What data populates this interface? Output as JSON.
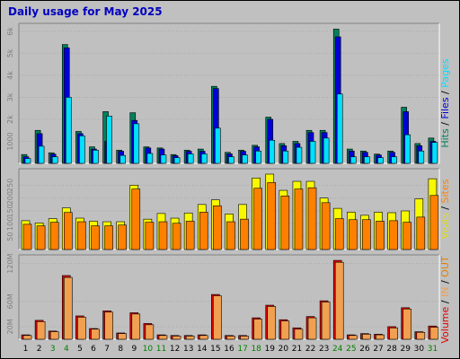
{
  "title": "Daily usage for May 2025",
  "colors": {
    "hits": "#00805c",
    "files": "#0000d8",
    "pages": "#00e0ff",
    "visits": "#f8f800",
    "sites": "#ff8000",
    "kbytes": "#e00000",
    "kbin": "#f0a050",
    "kbout": "#e08000",
    "weekday_label": "#000000",
    "weekend_label": "#008000",
    "panel_bg": "#c0c0c0",
    "frame": "#000000"
  },
  "legends": {
    "top": [
      {
        "text": "Hits",
        "color": "#00805c"
      },
      {
        "text": " / ",
        "color": "#000000"
      },
      {
        "text": "Files",
        "color": "#0000d8"
      },
      {
        "text": " / ",
        "color": "#000000"
      },
      {
        "text": "Pages",
        "color": "#00e0ff"
      }
    ],
    "middle": [
      {
        "text": "Visits",
        "color": "#e0e000"
      },
      {
        "text": " / ",
        "color": "#000000"
      },
      {
        "text": "Sites",
        "color": "#ff8000"
      }
    ],
    "bottom": [
      {
        "text": "Volume",
        "color": "#e00000"
      },
      {
        "text": " / ",
        "color": "#000000"
      },
      {
        "text": "IN",
        "color": "#f0a050"
      },
      {
        "text": " / ",
        "color": "#000000"
      },
      {
        "text": "OUT",
        "color": "#e08000"
      }
    ]
  },
  "chart_data": [
    {
      "type": "bar",
      "name": "hits-files-pages",
      "categories": [
        "1",
        "2",
        "3",
        "4",
        "5",
        "6",
        "7",
        "8",
        "9",
        "10",
        "11",
        "12",
        "13",
        "14",
        "15",
        "16",
        "17",
        "18",
        "19",
        "20",
        "21",
        "22",
        "23",
        "24",
        "25",
        "26",
        "27",
        "28",
        "29",
        "30",
        "31"
      ],
      "weekend_days": [
        "3",
        "4",
        "10",
        "11",
        "17",
        "18",
        "24",
        "25",
        "31"
      ],
      "ylim": [
        0,
        6200
      ],
      "yticks": [
        {
          "value": 1000,
          "label": "1000"
        },
        {
          "value": 2000,
          "label": "2k"
        },
        {
          "value": 3000,
          "label": "3k"
        },
        {
          "value": 4000,
          "label": "4k"
        },
        {
          "value": 5000,
          "label": "5k"
        },
        {
          "value": 6000,
          "label": "6k"
        }
      ],
      "series": [
        {
          "key": "hits",
          "values": [
            400,
            1500,
            480,
            5400,
            1450,
            750,
            2350,
            600,
            2300,
            750,
            700,
            400,
            600,
            650,
            3500,
            500,
            600,
            820,
            2100,
            900,
            1000,
            1500,
            1500,
            6100,
            650,
            560,
            420,
            560,
            2550,
            900,
            1150
          ]
        },
        {
          "key": "files",
          "values": [
            300,
            1350,
            420,
            5250,
            1350,
            650,
            1000,
            550,
            1950,
            700,
            650,
            350,
            550,
            550,
            3400,
            430,
            550,
            750,
            2000,
            800,
            900,
            1400,
            1400,
            5750,
            560,
            500,
            380,
            500,
            2350,
            800,
            1000
          ]
        },
        {
          "key": "pages",
          "values": [
            220,
            780,
            300,
            3000,
            1250,
            600,
            2150,
            360,
            1800,
            450,
            380,
            260,
            430,
            430,
            1600,
            300,
            380,
            560,
            1050,
            560,
            730,
            1000,
            1150,
            3150,
            300,
            300,
            260,
            300,
            1300,
            560,
            950
          ]
        }
      ]
    },
    {
      "type": "bar",
      "name": "visits-sites",
      "categories": [
        "1",
        "2",
        "3",
        "4",
        "5",
        "6",
        "7",
        "8",
        "9",
        "10",
        "11",
        "12",
        "13",
        "14",
        "15",
        "16",
        "17",
        "18",
        "19",
        "20",
        "21",
        "22",
        "23",
        "24",
        "25",
        "26",
        "27",
        "28",
        "29",
        "30",
        "31"
      ],
      "ylim": [
        0,
        300
      ],
      "yticks": [
        {
          "value": 50,
          "label": "50"
        },
        {
          "value": 100,
          "label": "100"
        },
        {
          "value": 150,
          "label": "150"
        },
        {
          "value": 200,
          "label": "200"
        },
        {
          "value": 250,
          "label": "250"
        }
      ],
      "series": [
        {
          "key": "visits",
          "values": [
            112,
            103,
            120,
            162,
            122,
            110,
            108,
            108,
            250,
            118,
            140,
            122,
            142,
            175,
            193,
            138,
            175,
            278,
            293,
            230,
            265,
            265,
            200,
            160,
            145,
            133,
            145,
            143,
            150,
            197,
            275
          ]
        },
        {
          "key": "sites",
          "values": [
            98,
            92,
            106,
            144,
            108,
            92,
            92,
            95,
            235,
            106,
            108,
            102,
            110,
            145,
            170,
            108,
            118,
            238,
            260,
            208,
            235,
            240,
            182,
            120,
            116,
            116,
            110,
            112,
            106,
            126,
            210
          ]
        }
      ]
    },
    {
      "type": "bar",
      "name": "volume",
      "categories": [
        "1",
        "2",
        "3",
        "4",
        "5",
        "6",
        "7",
        "8",
        "9",
        "10",
        "11",
        "12",
        "13",
        "14",
        "15",
        "16",
        "17",
        "18",
        "19",
        "20",
        "21",
        "22",
        "23",
        "24",
        "25",
        "26",
        "27",
        "28",
        "29",
        "30",
        "31"
      ],
      "ylim": [
        0,
        128
      ],
      "yticks": [
        {
          "value": 20,
          "label": "20M"
        },
        {
          "value": 60,
          "label": "60M"
        },
        {
          "value": 120,
          "label": "120M"
        }
      ],
      "series": [
        {
          "key": "kbytes",
          "values": [
            7,
            30,
            13,
            101,
            37,
            17,
            45,
            10,
            42,
            25,
            7,
            6,
            6,
            7,
            71,
            6,
            6,
            34,
            54,
            31,
            18,
            36,
            61,
            125,
            7,
            9,
            8,
            20,
            50,
            12,
            21
          ]
        },
        {
          "key": "kbin",
          "values": [
            6,
            28,
            12,
            98,
            35,
            16,
            43,
            9,
            40,
            23,
            6,
            5,
            5,
            6,
            69,
            5,
            5,
            32,
            52,
            29,
            16,
            34,
            59,
            122,
            6,
            8,
            7,
            18,
            48,
            11,
            19
          ]
        }
      ]
    }
  ]
}
